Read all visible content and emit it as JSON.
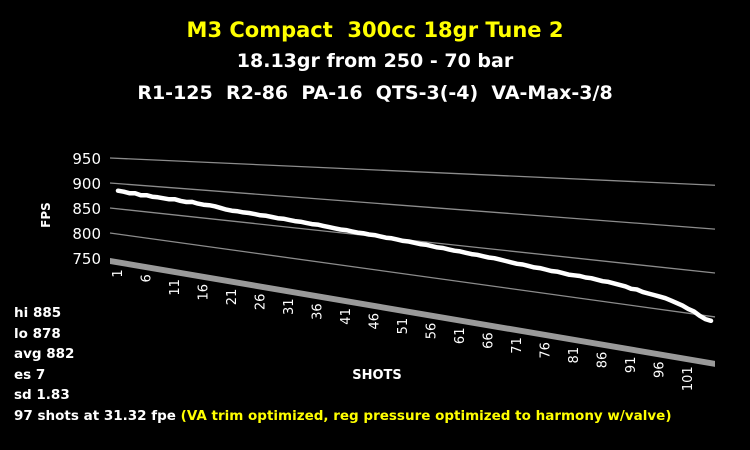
{
  "chart_data": {
    "type": "line",
    "title": "M3 Compact  300cc 18gr Tune 2",
    "subtitle1": "18.13gr from 250 - 70 bar",
    "subtitle2": "R1-125  R2-86  PA-16  QTS-3(-4)  VA-Max-3/8",
    "xlabel": "SHOTS",
    "ylabel": "FPS",
    "yticks": [
      750,
      800,
      850,
      900,
      950
    ],
    "ylim": [
      750,
      950
    ],
    "xticks": [
      1,
      6,
      11,
      16,
      21,
      26,
      31,
      36,
      41,
      46,
      51,
      56,
      61,
      66,
      71,
      76,
      81,
      86,
      91,
      96,
      101
    ],
    "xlim": [
      1,
      105
    ],
    "grid": true,
    "line_color": "#ffffff",
    "series": [
      {
        "values": [
          886,
          885,
          883,
          884,
          881,
          882,
          880,
          880,
          879,
          878,
          879,
          877,
          876,
          877,
          875,
          874,
          874,
          873,
          871,
          869,
          868,
          868,
          867,
          867,
          866,
          865,
          865,
          864,
          863,
          863,
          862,
          861,
          861,
          860,
          859,
          859,
          858,
          857,
          856,
          855,
          855,
          854,
          853,
          853,
          852,
          852,
          851,
          850,
          850,
          849,
          848,
          848,
          847,
          846,
          846,
          845,
          844,
          844,
          843,
          842,
          842,
          841,
          840,
          840,
          839,
          838,
          838,
          837,
          836,
          835,
          834,
          834,
          833,
          832,
          832,
          831,
          830,
          830,
          829,
          828,
          828,
          828,
          827,
          827,
          826,
          825,
          825,
          824,
          823,
          822,
          820,
          820,
          818,
          817,
          816,
          815,
          814,
          812,
          810,
          808,
          805,
          803,
          799,
          796,
          795
        ]
      }
    ]
  },
  "stats": {
    "hi": "hi 885",
    "lo": "lo 878",
    "avg": "avg 882",
    "es": "es 7",
    "sd": "sd 1.83",
    "shots_prefix": "97 shots at 31.32 fpe ",
    "shots_note": "(VA trim optimized, reg pressure optimized to harmony w/valve)"
  },
  "colors": {
    "title": "#ffff00",
    "note": "#ffff00",
    "grid": "#8c8c8c",
    "floor": "#9a9a9a"
  }
}
